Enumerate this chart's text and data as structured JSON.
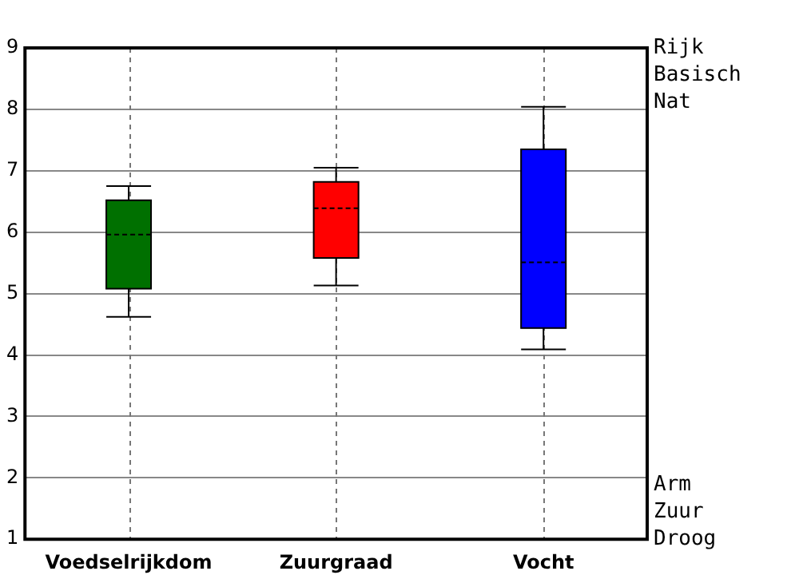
{
  "chart_data": {
    "type": "box",
    "categories": [
      "Voedselrijkdom",
      "Zuurgraad",
      "Vocht"
    ],
    "colors": [
      "#007000",
      "#ff0000",
      "#0000ff"
    ],
    "boxes": [
      {
        "low": 4.62,
        "q1": 5.08,
        "median": 5.96,
        "q3": 6.52,
        "high": 6.75
      },
      {
        "low": 5.13,
        "q1": 5.58,
        "median": 6.39,
        "q3": 6.82,
        "high": 7.05
      },
      {
        "low": 4.09,
        "q1": 4.44,
        "median": 5.51,
        "q3": 7.35,
        "high": 8.04
      }
    ],
    "ylim": [
      1,
      9
    ],
    "yticks": [
      1,
      2,
      3,
      4,
      5,
      6,
      7,
      8,
      9
    ],
    "grid": true,
    "annotations": [
      "Rijk",
      "Basisch",
      "Nat",
      "Arm",
      "Zuur",
      "Droog"
    ]
  }
}
